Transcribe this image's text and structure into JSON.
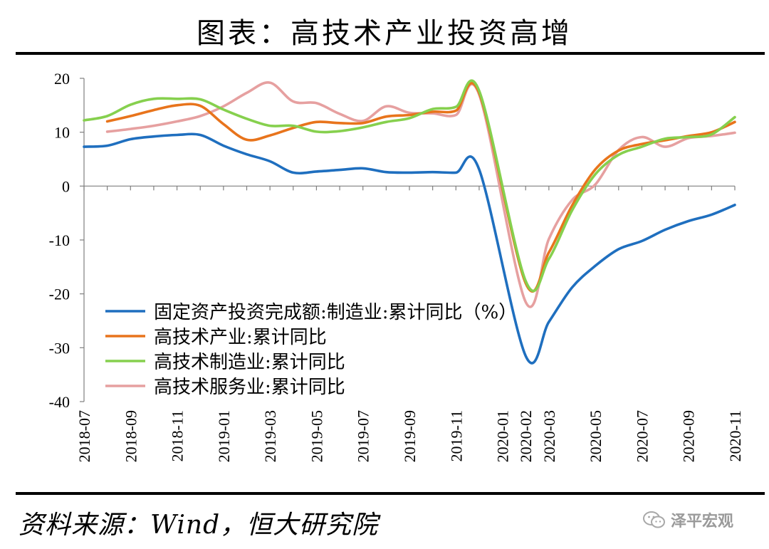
{
  "header": {
    "title": "图表：高技术产业投资高增"
  },
  "footer": {
    "source": "资料来源：Wind，恒大研究院",
    "watermark": "泽平宏观"
  },
  "chart_data": {
    "type": "line",
    "title": "",
    "xlabel": "",
    "ylabel": "",
    "ylim": [
      -40,
      20
    ],
    "yticks": [
      -40,
      -30,
      -20,
      -10,
      0,
      10,
      20
    ],
    "x_tick_labels": [
      "2018-07",
      "2018-09",
      "2018-11",
      "2019-01",
      "2019-03",
      "2019-05",
      "2019-07",
      "2019-09",
      "2019-11",
      "2020-01",
      "2020-02",
      "2020-03",
      "2020-05",
      "2020-07",
      "2020-09",
      "2020-11"
    ],
    "x": [
      "2018-07",
      "2018-08",
      "2018-09",
      "2018-10",
      "2018-11",
      "2018-12",
      "2019-01",
      "2019-02",
      "2019-03",
      "2019-04",
      "2019-05",
      "2019-06",
      "2019-07",
      "2019-08",
      "2019-09",
      "2019-10",
      "2019-11",
      "2019-12",
      "2020-01",
      "2020-02",
      "2020-03",
      "2020-04",
      "2020-05",
      "2020-06",
      "2020-07",
      "2020-08",
      "2020-09",
      "2020-10",
      "2020-11"
    ],
    "grid": false,
    "legend": "bottom-left",
    "series": [
      {
        "name": "固定资产投资完成额:制造业:累计同比（%）",
        "color": "#1f6fbf",
        "values": [
          7.3,
          7.5,
          8.7,
          9.2,
          9.5,
          9.5,
          7.5,
          5.9,
          4.6,
          2.5,
          2.7,
          3.0,
          3.3,
          2.6,
          2.5,
          2.6,
          2.5,
          3.1,
          null,
          -31.5,
          -25.2,
          -18.8,
          -14.8,
          -11.7,
          -10.2,
          -8.1,
          -6.5,
          -5.3,
          -3.5
        ]
      },
      {
        "name": "高技术产业:累计同比",
        "color": "#e8741c",
        "values": [
          null,
          12.0,
          13.0,
          14.1,
          15.0,
          14.9,
          11.5,
          8.6,
          9.4,
          10.8,
          11.9,
          11.7,
          11.7,
          12.9,
          13.2,
          13.8,
          14.0,
          17.3,
          null,
          -18.0,
          -12.3,
          -3.6,
          3.1,
          6.6,
          7.8,
          8.5,
          9.3,
          10.0,
          11.9
        ]
      },
      {
        "name": "高技术制造业:累计同比",
        "color": "#86d04e",
        "values": [
          12.2,
          13.0,
          15.1,
          16.2,
          16.2,
          16.1,
          14.2,
          12.5,
          11.2,
          11.2,
          10.1,
          10.2,
          10.9,
          11.9,
          12.6,
          14.3,
          14.7,
          17.7,
          null,
          -17.6,
          -13.5,
          -4.5,
          2.2,
          5.8,
          7.3,
          8.8,
          9.1,
          9.6,
          12.8
        ]
      },
      {
        "name": "高技术服务业:累计同比",
        "color": "#e6a0a0",
        "values": [
          null,
          10.1,
          10.6,
          11.2,
          12.0,
          13.0,
          14.8,
          17.3,
          19.2,
          15.7,
          15.4,
          13.4,
          12.1,
          14.8,
          13.6,
          13.5,
          13.2,
          17.0,
          null,
          -21.5,
          -9.8,
          -2.6,
          0.3,
          6.7,
          9.1,
          7.3,
          8.9,
          9.3,
          9.9
        ]
      }
    ]
  }
}
